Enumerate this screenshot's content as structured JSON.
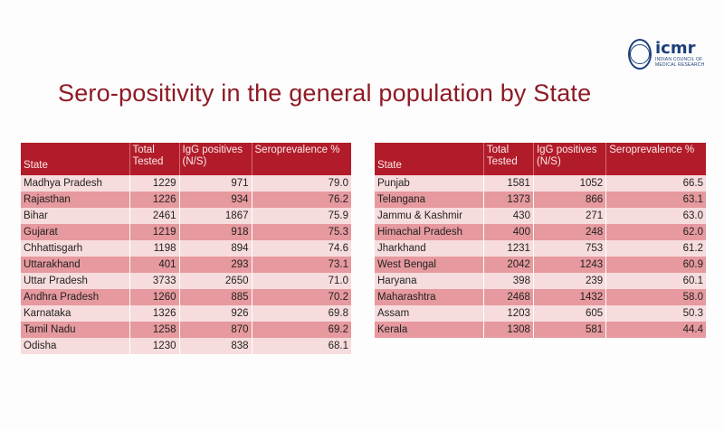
{
  "logo": {
    "name": "icmr",
    "tagline": "INDIAN COUNCIL OF MEDICAL RESEARCH"
  },
  "title": "Sero-positivity in the general population by State",
  "headers": {
    "state": "State",
    "total_tested": "Total Tested",
    "igg_positives": "IgG positives (N/S)",
    "seroprevalence": "Seroprevalence %"
  },
  "left_rows": [
    {
      "state": "Madhya Pradesh",
      "total": "1229",
      "igg": "971",
      "sero": "79.0"
    },
    {
      "state": "Rajasthan",
      "total": "1226",
      "igg": "934",
      "sero": "76.2"
    },
    {
      "state": "Bihar",
      "total": "2461",
      "igg": "1867",
      "sero": "75.9"
    },
    {
      "state": "Gujarat",
      "total": "1219",
      "igg": "918",
      "sero": "75.3"
    },
    {
      "state": "Chhattisgarh",
      "total": "1198",
      "igg": "894",
      "sero": "74.6"
    },
    {
      "state": "Uttarakhand",
      "total": "401",
      "igg": "293",
      "sero": "73.1"
    },
    {
      "state": "Uttar Pradesh",
      "total": "3733",
      "igg": "2650",
      "sero": "71.0"
    },
    {
      "state": "Andhra Pradesh",
      "total": "1260",
      "igg": "885",
      "sero": "70.2"
    },
    {
      "state": "Karnataka",
      "total": "1326",
      "igg": "926",
      "sero": "69.8"
    },
    {
      "state": "Tamil Nadu",
      "total": "1258",
      "igg": "870",
      "sero": "69.2"
    },
    {
      "state": "Odisha",
      "total": "1230",
      "igg": "838",
      "sero": "68.1"
    }
  ],
  "right_rows": [
    {
      "state": "Punjab",
      "total": "1581",
      "igg": "1052",
      "sero": "66.5"
    },
    {
      "state": "Telangana",
      "total": "1373",
      "igg": "866",
      "sero": "63.1"
    },
    {
      "state": "Jammu & Kashmir",
      "total": "430",
      "igg": "271",
      "sero": "63.0"
    },
    {
      "state": "Himachal Pradesh",
      "total": "400",
      "igg": "248",
      "sero": "62.0"
    },
    {
      "state": "Jharkhand",
      "total": "1231",
      "igg": "753",
      "sero": "61.2"
    },
    {
      "state": "West Bengal",
      "total": "2042",
      "igg": "1243",
      "sero": "60.9"
    },
    {
      "state": "Haryana",
      "total": "398",
      "igg": "239",
      "sero": "60.1"
    },
    {
      "state": "Maharashtra",
      "total": "2468",
      "igg": "1432",
      "sero": "58.0"
    },
    {
      "state": "Assam",
      "total": "1203",
      "igg": "605",
      "sero": "50.3"
    },
    {
      "state": "Kerala",
      "total": "1308",
      "igg": "581",
      "sero": "44.4"
    }
  ]
}
